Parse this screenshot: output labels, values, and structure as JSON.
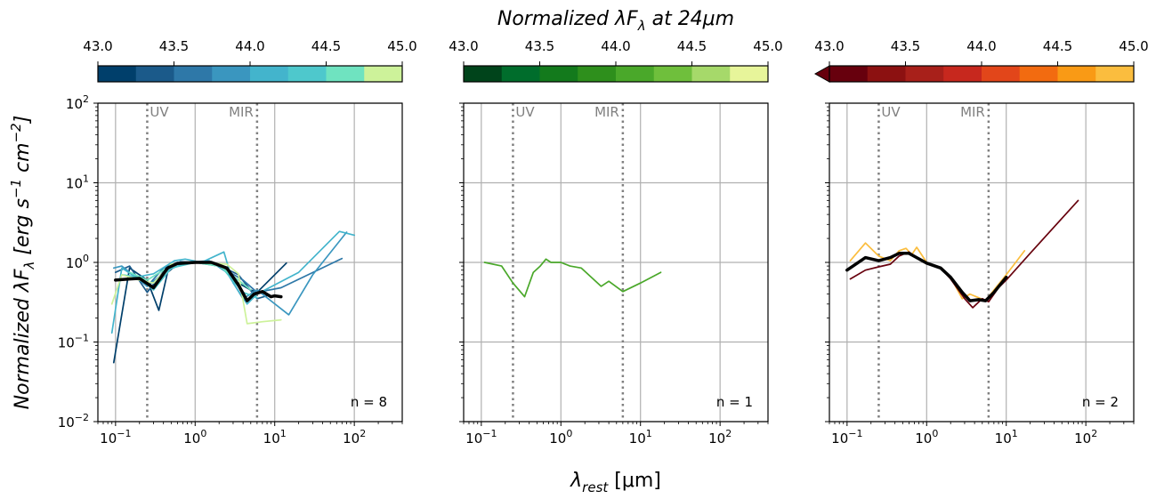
{
  "figure": {
    "title_prefix": "Normalized ",
    "title_lambda": "λF",
    "title_sub": "λ",
    "title_suffix": " at 24μm",
    "xlabel_main": "λ",
    "xlabel_sub": "rest",
    "xlabel_unit": " [μm]",
    "ylabel_prefix": "Normalized ",
    "ylabel_lambda": "λF",
    "ylabel_sub": "λ",
    "ylabel_unit": " [erg s",
    "ylabel_unit_sup1": "−1",
    "ylabel_unit_mid": " cm",
    "ylabel_unit_sup2": "−2",
    "ylabel_close": "]",
    "uv_label": "UV",
    "mir_label": "MIR",
    "uv_line_x": 0.25,
    "mir_line_x": 6,
    "reference_line_color": "#808080",
    "median_color": "#000000"
  },
  "colorbar_ticks": [
    "43.0",
    "43.5",
    "44.0",
    "44.5",
    "45.0"
  ],
  "colorbars": [
    {
      "colors": [
        "#003f6b",
        "#1b5a8a",
        "#2e78a8",
        "#3a96bf",
        "#43b4cc",
        "#4ec8cc",
        "#6fe3c0",
        "#cdf29a"
      ]
    },
    {
      "colors": [
        "#00441b",
        "#006d2c",
        "#137a1c",
        "#2e8f1c",
        "#4aa82a",
        "#6fbf3c",
        "#a6d96a",
        "#e7f59a"
      ]
    },
    {
      "colors": [
        "#67000d",
        "#8c1111",
        "#a8201a",
        "#c7281e",
        "#e2461a",
        "#f26b10",
        "#f99a15",
        "#fbbd3e"
      ],
      "extend_left": true
    }
  ],
  "chart_data": [
    {
      "type": "line",
      "xscale": "log",
      "yscale": "log",
      "xlim": [
        0.06,
        400
      ],
      "ylim": [
        0.01,
        100
      ],
      "x_ticks": [
        0.1,
        1,
        10,
        100
      ],
      "x_tick_labels": [
        {
          "base": "10",
          "exp": "−1"
        },
        {
          "base": "10",
          "exp": "0"
        },
        {
          "base": "10",
          "exp": "1"
        },
        {
          "base": "10",
          "exp": "2"
        }
      ],
      "y_ticks": [
        0.01,
        0.1,
        1,
        10,
        100
      ],
      "y_tick_labels": [
        {
          "base": "10",
          "exp": "−2"
        },
        {
          "base": "10",
          "exp": "−1"
        },
        {
          "base": "10",
          "exp": "0"
        },
        {
          "base": "10",
          "exp": "1"
        },
        {
          "base": "10",
          "exp": "2"
        }
      ],
      "grid": true,
      "n_label": "n = 8",
      "series": [
        {
          "color": "#003f6b",
          "x": [
            0.095,
            0.15,
            0.25,
            0.35,
            0.45,
            0.65,
            1.0,
            2.0,
            3.5,
            5.0,
            6.0,
            14
          ],
          "y": [
            0.055,
            0.85,
            0.6,
            0.25,
            0.75,
            1.02,
            1.0,
            0.95,
            0.55,
            0.45,
            0.42,
            0.98
          ]
        },
        {
          "color": "#1b5a8a",
          "x": [
            0.1,
            0.15,
            0.25,
            0.45,
            0.7,
            1.0,
            2.0,
            3.5,
            6.0,
            8.0
          ],
          "y": [
            0.75,
            0.9,
            0.42,
            0.9,
            0.98,
            1.0,
            0.92,
            0.7,
            0.35,
            0.38
          ]
        },
        {
          "color": "#2e78a8",
          "x": [
            0.1,
            0.2,
            0.25,
            0.4,
            0.6,
            1.0,
            2.0,
            4.0,
            6.0,
            12,
            70
          ],
          "y": [
            0.6,
            0.65,
            0.5,
            0.85,
            1.0,
            1.0,
            0.9,
            0.6,
            0.42,
            0.48,
            1.12
          ]
        },
        {
          "color": "#3a96bf",
          "x": [
            0.095,
            0.12,
            0.15,
            0.25,
            0.45,
            0.8,
            1.5,
            2.5,
            4.0,
            6.0,
            15,
            30,
            80
          ],
          "y": [
            0.85,
            0.9,
            0.75,
            0.5,
            0.8,
            1.0,
            1.05,
            0.75,
            0.35,
            0.45,
            0.22,
            0.7,
            2.4
          ]
        },
        {
          "color": "#43b4cc",
          "x": [
            0.09,
            0.12,
            0.18,
            0.3,
            0.55,
            0.75,
            1.2,
            2.3,
            3.0,
            4.5,
            6.0,
            20,
            65,
            100
          ],
          "y": [
            0.13,
            0.85,
            0.65,
            0.72,
            1.05,
            1.1,
            1.0,
            1.35,
            0.55,
            0.3,
            0.4,
            0.75,
            2.45,
            2.2
          ]
        },
        {
          "color": "#4ec8cc",
          "x": [
            0.12,
            0.2,
            0.3,
            0.5,
            1.0,
            2.0,
            4.0,
            6.0
          ],
          "y": [
            0.7,
            0.65,
            0.45,
            0.85,
            1.0,
            0.95,
            0.42,
            0.36
          ]
        },
        {
          "color": "#6fe3c0",
          "x": [
            0.15,
            0.25,
            0.4,
            0.7,
            1.0,
            2.0,
            3.5,
            5.0
          ],
          "y": [
            0.75,
            0.6,
            0.8,
            1.0,
            1.0,
            0.9,
            0.6,
            0.45
          ]
        },
        {
          "color": "#cdf29a",
          "x": [
            0.09,
            0.12,
            0.2,
            0.3,
            0.5,
            1.0,
            2.5,
            3.5,
            4.5,
            7.0,
            12
          ],
          "y": [
            0.3,
            0.7,
            0.6,
            0.55,
            0.95,
            1.0,
            0.95,
            0.72,
            0.17,
            0.18,
            0.19
          ]
        },
        {
          "color": "#000000",
          "width": 3.5,
          "x": [
            0.1,
            0.15,
            0.2,
            0.3,
            0.45,
            0.6,
            1.0,
            1.6,
            2.5,
            3.5,
            4.5,
            5.5,
            7.0,
            9.0,
            10.0,
            12.0
          ],
          "y": [
            0.6,
            0.62,
            0.63,
            0.48,
            0.85,
            0.97,
            1.0,
            1.0,
            0.85,
            0.52,
            0.33,
            0.4,
            0.43,
            0.37,
            0.38,
            0.37
          ]
        }
      ]
    },
    {
      "type": "line",
      "xscale": "log",
      "yscale": "log",
      "xlim": [
        0.06,
        400
      ],
      "ylim": [
        0.01,
        100
      ],
      "x_ticks": [
        0.1,
        1,
        10,
        100
      ],
      "x_tick_labels": [
        {
          "base": "10",
          "exp": "−1"
        },
        {
          "base": "10",
          "exp": "0"
        },
        {
          "base": "10",
          "exp": "1"
        },
        {
          "base": "10",
          "exp": "2"
        }
      ],
      "y_ticks": [
        0.01,
        0.1,
        1,
        10,
        100
      ],
      "grid": true,
      "n_label": "n = 1",
      "series": [
        {
          "color": "#4aa82a",
          "x": [
            0.11,
            0.18,
            0.25,
            0.35,
            0.45,
            0.55,
            0.65,
            0.75,
            1.0,
            1.3,
            1.8,
            3.2,
            4.0,
            6.0,
            10,
            18
          ],
          "y": [
            1.0,
            0.9,
            0.55,
            0.37,
            0.75,
            0.9,
            1.1,
            1.0,
            1.0,
            0.9,
            0.85,
            0.5,
            0.58,
            0.43,
            0.55,
            0.75
          ]
        }
      ]
    },
    {
      "type": "line",
      "xscale": "log",
      "yscale": "log",
      "xlim": [
        0.06,
        400
      ],
      "ylim": [
        0.01,
        100
      ],
      "x_ticks": [
        0.1,
        1,
        10,
        100
      ],
      "x_tick_labels": [
        {
          "base": "10",
          "exp": "−1"
        },
        {
          "base": "10",
          "exp": "0"
        },
        {
          "base": "10",
          "exp": "1"
        },
        {
          "base": "10",
          "exp": "2"
        }
      ],
      "y_ticks": [
        0.01,
        0.1,
        1,
        10,
        100
      ],
      "grid": true,
      "n_label": "n = 2",
      "series": [
        {
          "color": "#fbbd3e",
          "x": [
            0.11,
            0.17,
            0.25,
            0.35,
            0.45,
            0.55,
            0.65,
            0.75,
            1.0,
            1.5,
            2.0,
            2.8,
            3.5,
            4.5,
            5.5,
            7.0,
            10,
            17
          ],
          "y": [
            1.05,
            1.75,
            1.2,
            1.05,
            1.4,
            1.5,
            1.25,
            1.55,
            1.0,
            0.85,
            0.65,
            0.35,
            0.4,
            0.36,
            0.33,
            0.45,
            0.7,
            1.4
          ]
        },
        {
          "color": "#67000d",
          "x": [
            0.11,
            0.17,
            0.25,
            0.35,
            0.45,
            0.6,
            0.75,
            1.0,
            1.5,
            2.0,
            3.0,
            3.8,
            5.0,
            6.0,
            8.0,
            10,
            20,
            80
          ],
          "y": [
            0.62,
            0.8,
            0.88,
            0.95,
            1.2,
            1.35,
            1.15,
            1.0,
            0.85,
            0.62,
            0.35,
            0.27,
            0.35,
            0.32,
            0.48,
            0.6,
            1.3,
            6.0
          ]
        },
        {
          "color": "#000000",
          "width": 3.5,
          "x": [
            0.1,
            0.17,
            0.25,
            0.35,
            0.45,
            0.6,
            0.75,
            1.0,
            1.5,
            2.0,
            2.8,
            3.5,
            4.5,
            5.5,
            7.0,
            10
          ],
          "y": [
            0.8,
            1.15,
            1.05,
            1.15,
            1.3,
            1.3,
            1.15,
            0.98,
            0.85,
            0.65,
            0.42,
            0.33,
            0.34,
            0.33,
            0.42,
            0.65
          ]
        }
      ]
    }
  ]
}
